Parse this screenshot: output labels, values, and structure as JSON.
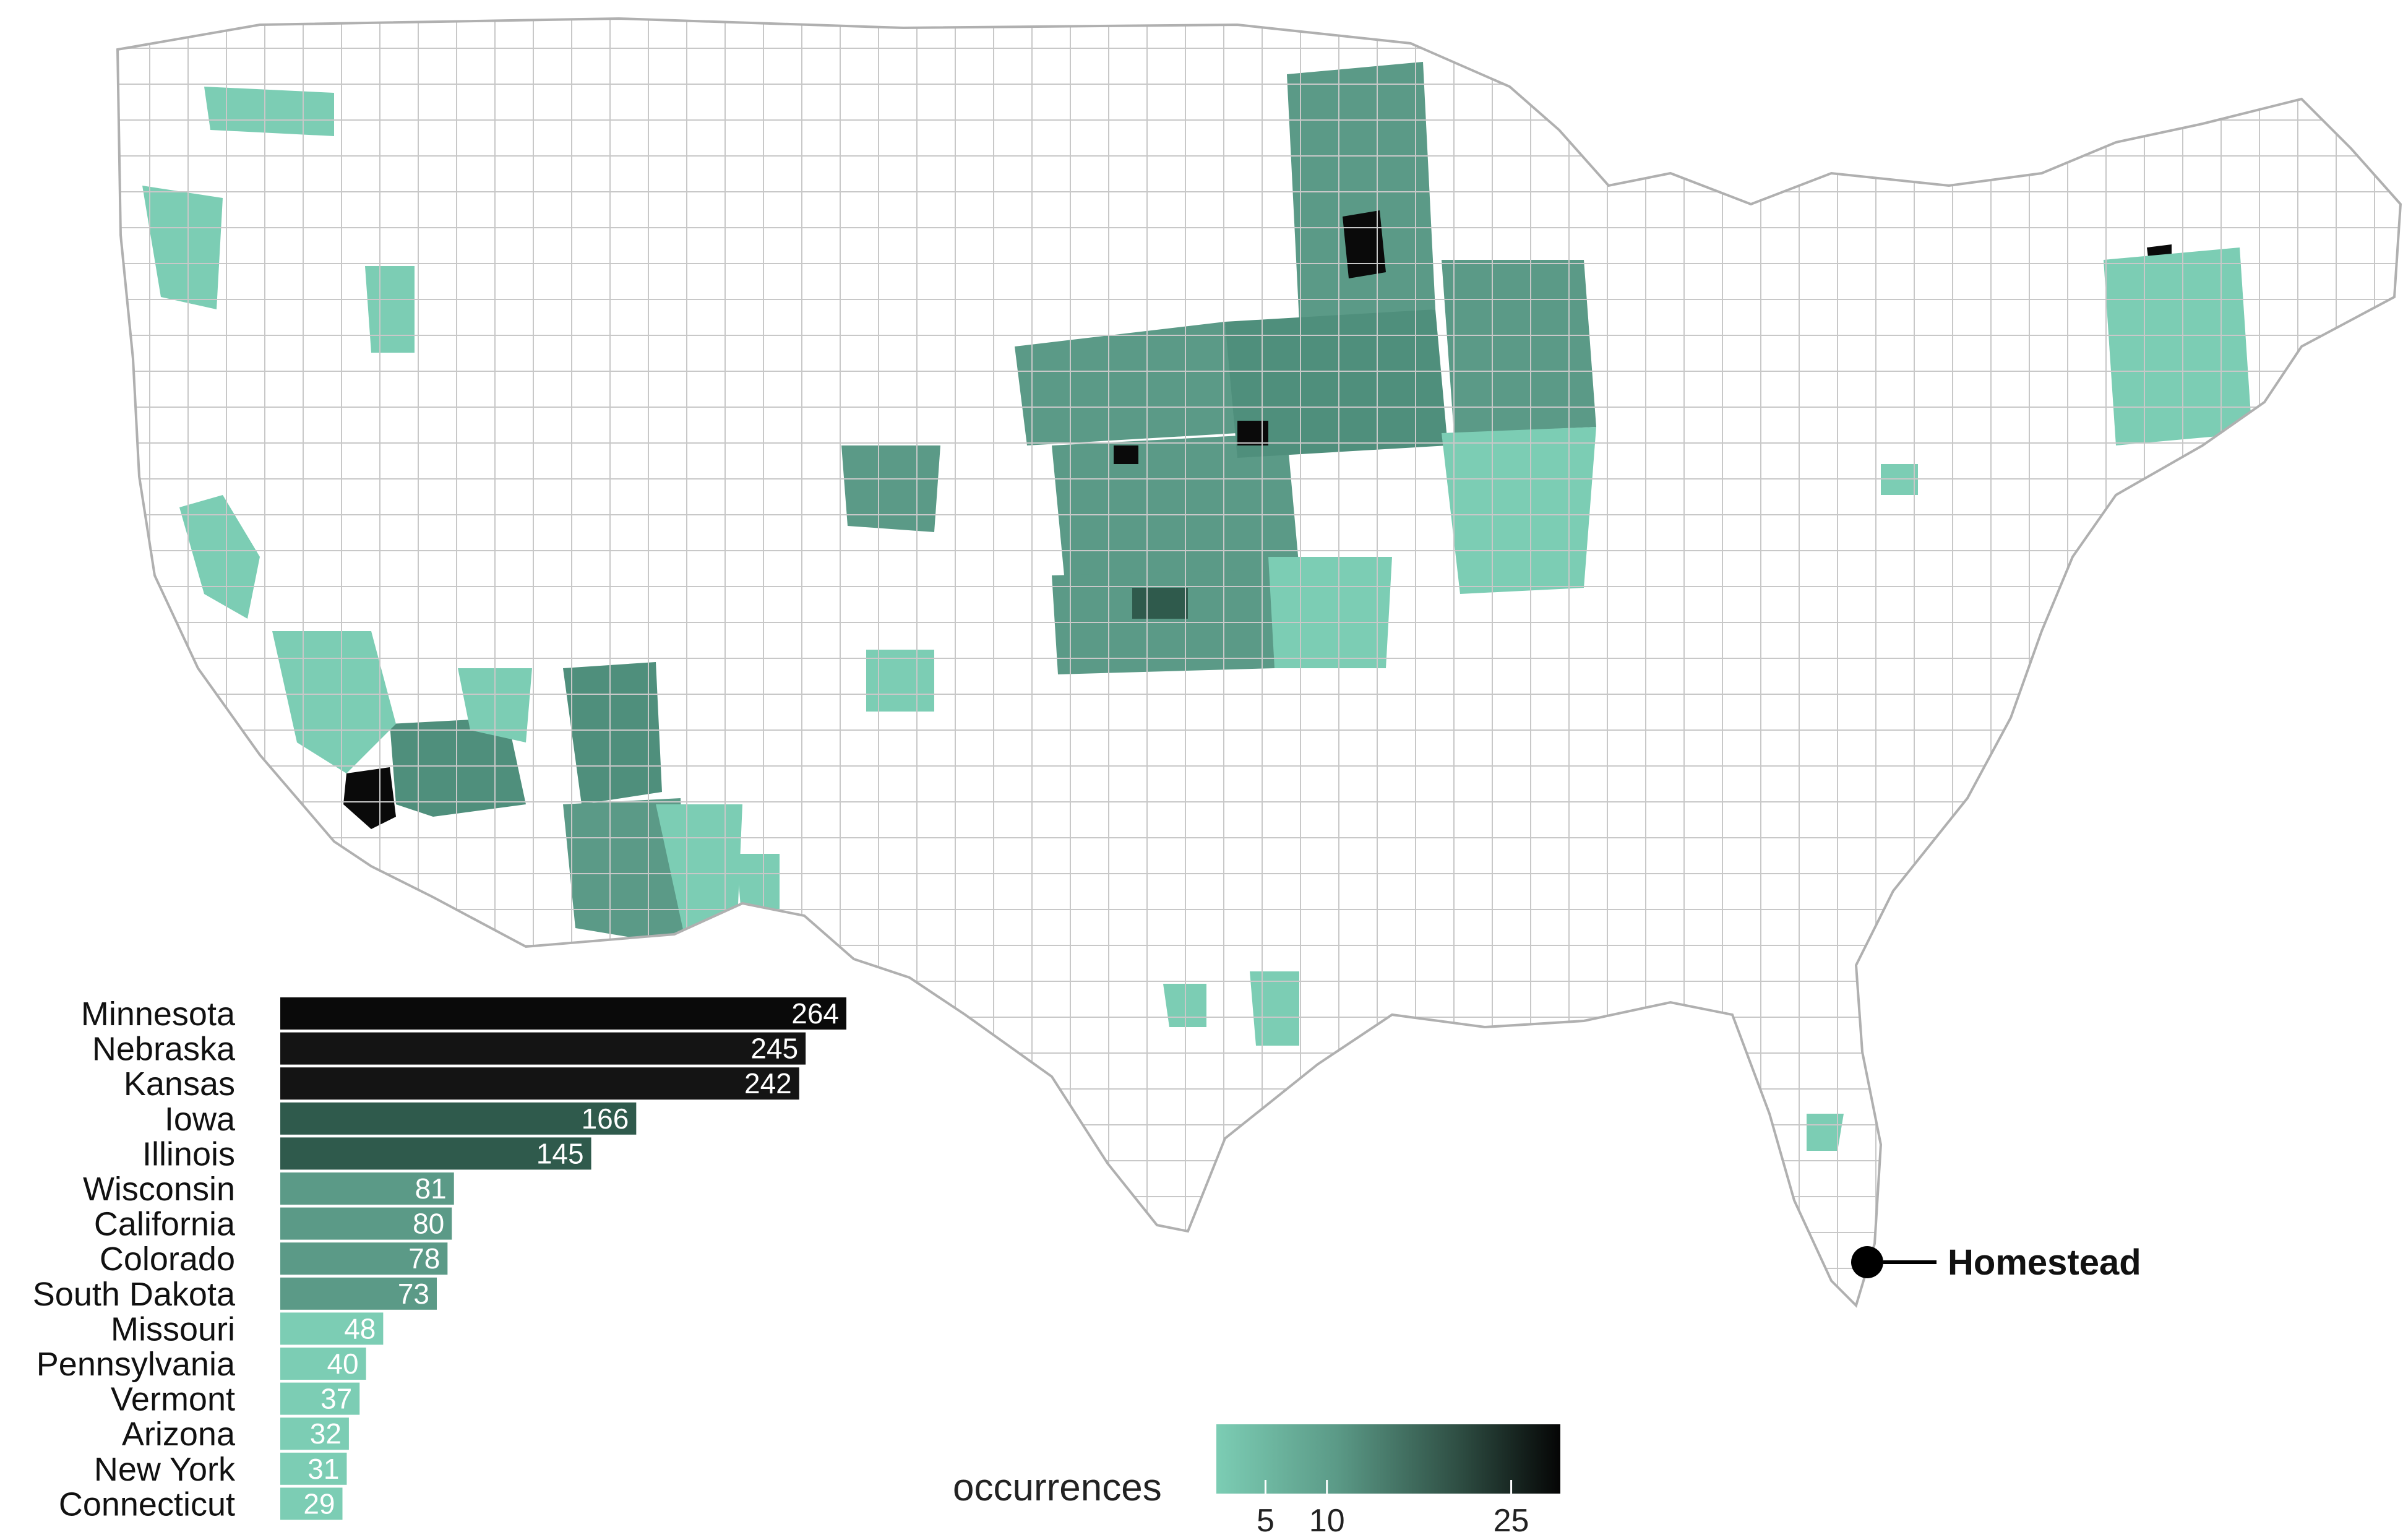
{
  "map": {
    "callout": {
      "label": "Homestead"
    },
    "colors": {
      "low": "#7ccdb4",
      "mid": "#4f8f7c",
      "high": "#2f5a4c",
      "max": "#0a0a0a",
      "county_border": "#c8c8c8",
      "empty": "#ffffff"
    }
  },
  "legend": {
    "title": "occurrences",
    "ticks": [
      {
        "label": "5",
        "value": 5
      },
      {
        "label": "10",
        "value": 10
      },
      {
        "label": "25",
        "value": 25
      }
    ],
    "range": [
      1,
      29
    ]
  },
  "chart_data": {
    "type": "bar",
    "orientation": "horizontal",
    "categories": [
      "Minnesota",
      "Nebraska",
      "Kansas",
      "Iowa",
      "Illinois",
      "Wisconsin",
      "California",
      "Colorado",
      "South Dakota",
      "Missouri",
      "Pennsylvania",
      "Vermont",
      "Arizona",
      "New York",
      "Connecticut"
    ],
    "values": [
      264,
      245,
      242,
      166,
      145,
      81,
      80,
      78,
      73,
      48,
      40,
      37,
      32,
      31,
      29
    ],
    "value_labels": [
      "264",
      "245",
      "242",
      "166",
      "145",
      "81",
      "80",
      "78",
      "73",
      "48",
      "40",
      "37",
      "32",
      "31",
      "29"
    ],
    "colors": [
      "#0a0a0a",
      "#141414",
      "#141414",
      "#2f5a4c",
      "#2f5a4c",
      "#5b9a87",
      "#5b9a87",
      "#5b9a87",
      "#5b9a87",
      "#7ccdb4",
      "#7ccdb4",
      "#7ccdb4",
      "#7ccdb4",
      "#7ccdb4",
      "#7ccdb4"
    ],
    "xlim": [
      0,
      264
    ]
  }
}
